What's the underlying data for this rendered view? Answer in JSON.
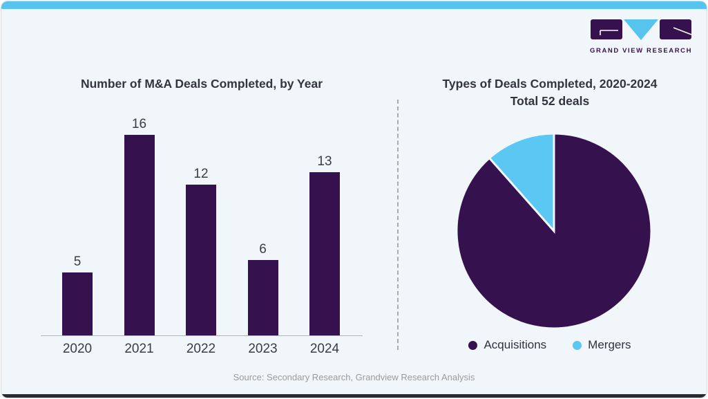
{
  "brand": {
    "logo_text": "GRAND VIEW RESEARCH"
  },
  "colors": {
    "accent_cyan": "#57c3ef",
    "primary_purple": "#35114d",
    "pie_blue": "#5bc7f3",
    "background": "#f1f6fa",
    "title_text": "#34343f",
    "muted_text": "#9b9b9b",
    "bottom_bar": "#2a2a33"
  },
  "chart_data": [
    {
      "type": "bar",
      "title": "Number of M&A Deals Completed, by Year",
      "categories": [
        "2020",
        "2021",
        "2022",
        "2023",
        "2024"
      ],
      "values": [
        5,
        16,
        12,
        6,
        13
      ],
      "bar_color": "#35114d",
      "xlabel": "",
      "ylabel": "",
      "ylim": [
        0,
        16
      ],
      "grid": false,
      "value_labels": true
    },
    {
      "type": "pie",
      "title": "Types of Deals Completed, 2020-2024",
      "subtitle": "Total 52 deals",
      "total": 52,
      "start_angle_deg": 0,
      "direction": "clockwise",
      "legend_position": "bottom",
      "segments": [
        {
          "label": "Acquisitions",
          "value": 46,
          "color": "#35114d"
        },
        {
          "label": "Mergers",
          "value": 6,
          "color": "#5bc7f3"
        }
      ]
    }
  ],
  "footer": {
    "source_note": "Source: Secondary Research, Grandview Research Analysis"
  }
}
